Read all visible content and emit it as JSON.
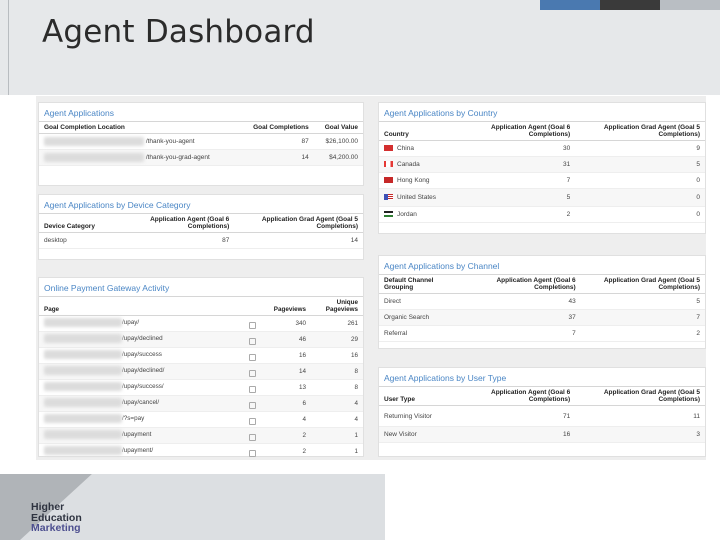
{
  "page": {
    "title": "Agent Dashboard"
  },
  "colors": {
    "accent_blue": "#4a79b0",
    "dark": "#3a3a3a",
    "link": "#4a86c5",
    "china": "#d32f2f",
    "canada": "#e53935",
    "hongkong": "#c62828",
    "us": "#3f51b5",
    "jordan": "#2e7d32"
  },
  "agent_applications": {
    "title": "Agent Applications",
    "headers": [
      "Goal Completion Location",
      "Goal Completions",
      "Goal Value"
    ],
    "rows": [
      {
        "location": "/thank-you-agent",
        "completions": "87",
        "value": "$26,100.00"
      },
      {
        "location": "/thank-you-grad-agent",
        "completions": "14",
        "value": "$4,200.00"
      }
    ]
  },
  "device_category": {
    "title": "Agent Applications by Device Category",
    "headers": [
      "Device Category",
      "Application Agent (Goal 6 Completions)",
      "Application Grad Agent (Goal 5 Completions)"
    ],
    "rows": [
      {
        "device": "desktop",
        "agent": "87",
        "grad": "14"
      }
    ]
  },
  "payment_gateway": {
    "title": "Online Payment Gateway Activity",
    "headers": [
      "Page",
      "Pageviews",
      "Unique Pageviews"
    ],
    "rows": [
      {
        "page": "/upay/",
        "views": "340",
        "unique": "261"
      },
      {
        "page": "/upay/declined",
        "views": "46",
        "unique": "29"
      },
      {
        "page": "/upay/success",
        "views": "16",
        "unique": "16"
      },
      {
        "page": "/upay/declined/",
        "views": "14",
        "unique": "8"
      },
      {
        "page": "/upay/success/",
        "views": "13",
        "unique": "8"
      },
      {
        "page": "/upay/cancel/",
        "views": "6",
        "unique": "4"
      },
      {
        "page": "/?s=pay",
        "views": "4",
        "unique": "4"
      },
      {
        "page": "/upayment",
        "views": "2",
        "unique": "1"
      },
      {
        "page": "/upayment/",
        "views": "2",
        "unique": "1"
      }
    ]
  },
  "country": {
    "title": "Agent Applications by Country",
    "headers": [
      "Country",
      "Application Agent (Goal 6 Completions)",
      "Application Grad Agent (Goal 5 Completions)"
    ],
    "rows": [
      {
        "country": "China",
        "agent": "30",
        "grad": "9",
        "flag": "china"
      },
      {
        "country": "Canada",
        "agent": "31",
        "grad": "5",
        "flag": "canada"
      },
      {
        "country": "Hong Kong",
        "agent": "7",
        "grad": "0",
        "flag": "hongkong"
      },
      {
        "country": "United States",
        "agent": "5",
        "grad": "0",
        "flag": "us"
      },
      {
        "country": "Jordan",
        "agent": "2",
        "grad": "0",
        "flag": "jordan"
      }
    ]
  },
  "channel": {
    "title": "Agent Applications by Channel",
    "headers": [
      "Default Channel Grouping",
      "Application Agent (Goal 6 Completions)",
      "Application Grad Agent (Goal 5 Completions)"
    ],
    "rows": [
      {
        "channel": "Direct",
        "agent": "43",
        "grad": "5"
      },
      {
        "channel": "Organic Search",
        "agent": "37",
        "grad": "7"
      },
      {
        "channel": "Referral",
        "agent": "7",
        "grad": "2"
      }
    ]
  },
  "user_type": {
    "title": "Agent Applications by User Type",
    "headers": [
      "User Type",
      "Application Agent (Goal 6 Completions)",
      "Application Grad Agent (Goal 5 Completions)"
    ],
    "rows": [
      {
        "type": "Returning Visitor",
        "agent": "71",
        "grad": "11"
      },
      {
        "type": "New Visitor",
        "agent": "16",
        "grad": "3"
      }
    ]
  },
  "logo": {
    "line1": "Higher",
    "line2": "Education",
    "line3": "Marketing"
  }
}
